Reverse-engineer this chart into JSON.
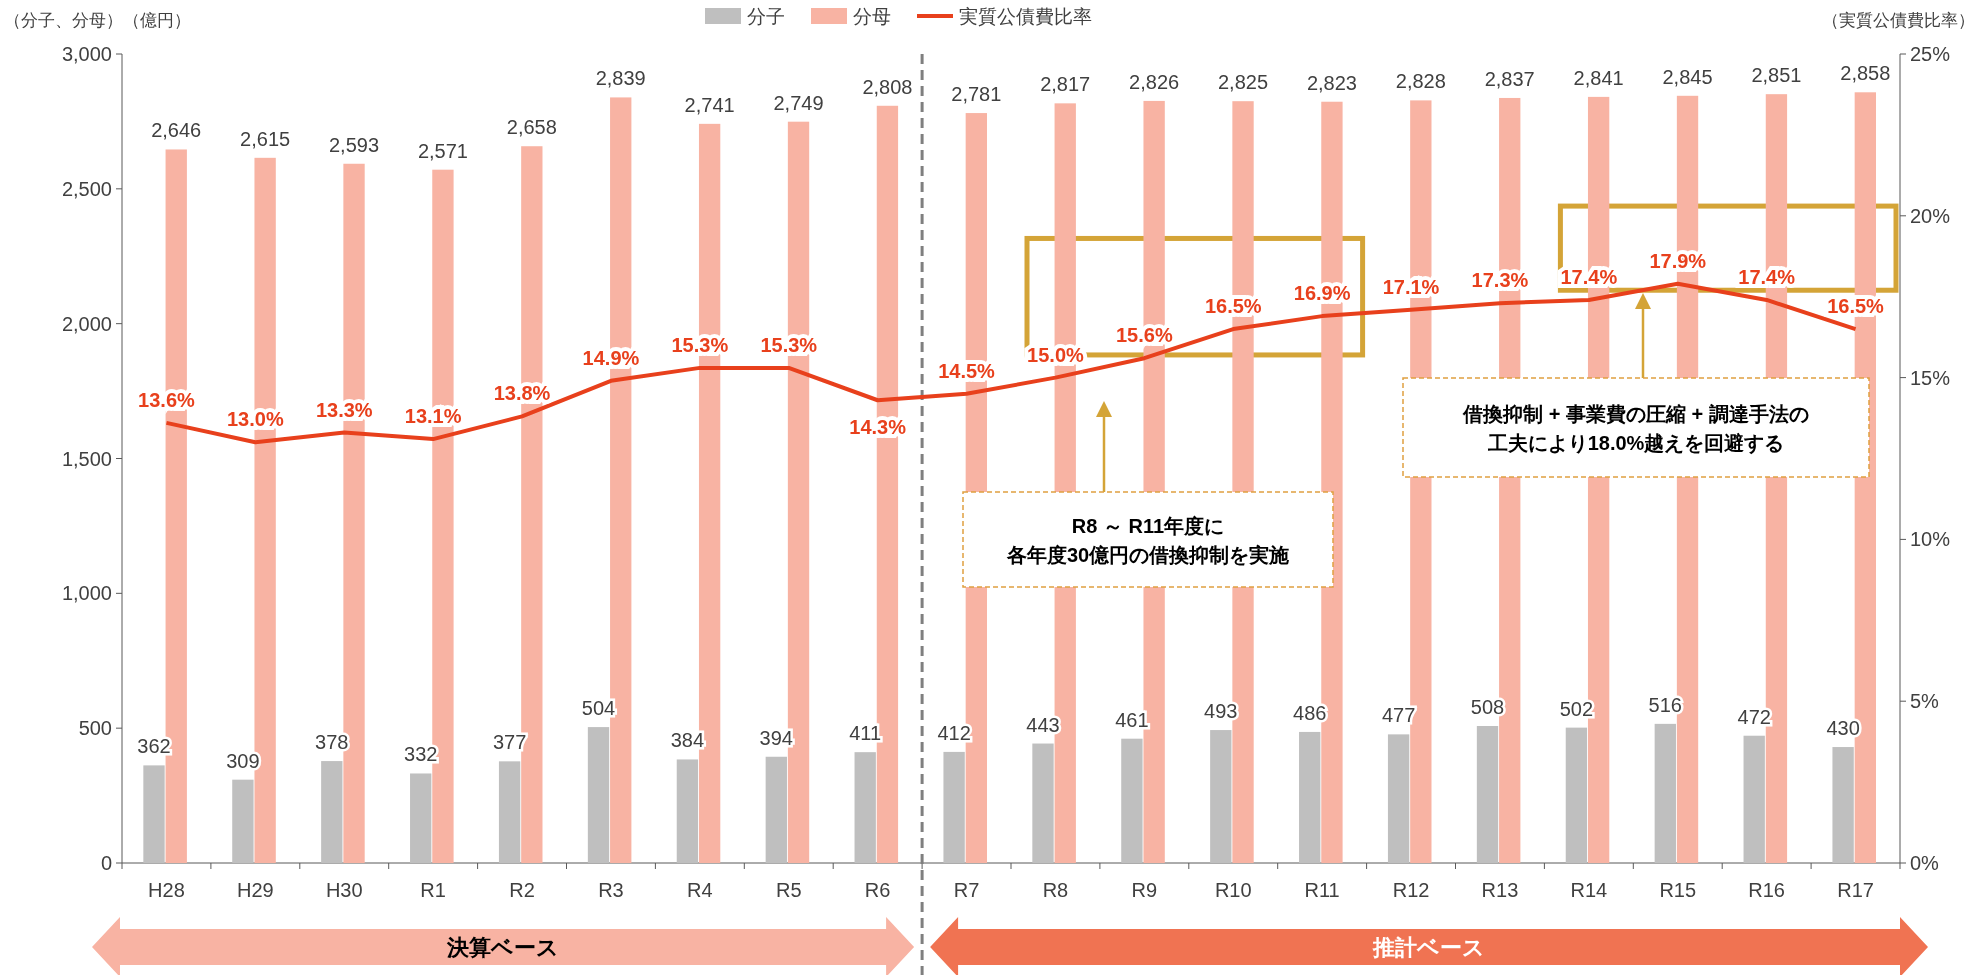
{
  "chart_data": {
    "type": "bar",
    "ylabel": "（分子、分母）（億円）",
    "y2label": "（実質公債費比率）",
    "categories": [
      "H28",
      "H29",
      "H30",
      "R1",
      "R2",
      "R3",
      "R4",
      "R5",
      "R6",
      "R7",
      "R8",
      "R9",
      "R10",
      "R11",
      "R12",
      "R13",
      "R14",
      "R15",
      "R16",
      "R17"
    ],
    "series": [
      {
        "name": "分子",
        "type": "bar",
        "color": "#bfbfbf",
        "values": [
          362,
          309,
          378,
          332,
          377,
          504,
          384,
          394,
          411,
          412,
          443,
          461,
          493,
          486,
          477,
          508,
          502,
          516,
          472,
          430
        ],
        "value_labels": [
          "362",
          "309",
          "378",
          "332",
          "377",
          "504",
          "384",
          "394",
          "411",
          "412",
          "443",
          "461",
          "493",
          "486",
          "477",
          "508",
          "502",
          "516",
          "472",
          "430"
        ]
      },
      {
        "name": "分母",
        "type": "bar",
        "color": "#f8b3a3",
        "values": [
          2646,
          2615,
          2593,
          2571,
          2658,
          2839,
          2741,
          2749,
          2808,
          2781,
          2817,
          2826,
          2825,
          2823,
          2828,
          2837,
          2841,
          2845,
          2851,
          2858
        ],
        "value_labels": [
          "2,646",
          "2,615",
          "2,593",
          "2,571",
          "2,658",
          "2,839",
          "2,741",
          "2,749",
          "2,808",
          "2,781",
          "2,817",
          "2,826",
          "2,825",
          "2,823",
          "2,828",
          "2,837",
          "2,841",
          "2,845",
          "2,851",
          "2,858"
        ]
      },
      {
        "name": "実質公債費比率",
        "type": "line",
        "axis": "y2",
        "color": "#e8401c",
        "values": [
          13.6,
          13.0,
          13.3,
          13.1,
          13.8,
          14.9,
          15.3,
          15.3,
          14.3,
          14.5,
          15.0,
          15.6,
          16.5,
          16.9,
          17.1,
          17.3,
          17.4,
          17.9,
          17.4,
          16.5
        ],
        "value_labels": [
          "13.6%",
          "13.0%",
          "13.3%",
          "13.1%",
          "13.8%",
          "14.9%",
          "15.3%",
          "15.3%",
          "14.3%",
          "14.5%",
          "15.0%",
          "15.6%",
          "16.5%",
          "16.9%",
          "17.1%",
          "17.3%",
          "17.4%",
          "17.9%",
          "17.4%",
          "16.5%"
        ]
      }
    ],
    "ylim": [
      0,
      3000
    ],
    "yticks": [
      0,
      500,
      {
        "value": 1000,
        "label": "1,000"
      },
      {
        "value": 1500,
        "label": "1,500"
      },
      {
        "value": 2000,
        "label": "2,000"
      },
      {
        "value": 2500,
        "label": "2,500"
      },
      {
        "value": 3000,
        "label": "3,000"
      }
    ],
    "y2lim": [
      0,
      25
    ],
    "y2ticks": [
      {
        "value": 0,
        "label": "0%"
      },
      {
        "value": 5,
        "label": "5%"
      },
      {
        "value": 10,
        "label": "10%"
      },
      {
        "value": 15,
        "label": "15%"
      },
      {
        "value": 20,
        "label": "20%"
      },
      {
        "value": 25,
        "label": "25%"
      }
    ],
    "legend": "top",
    "grid": false,
    "annotations": [
      "R8 ～ R11年度に各年度30億円の借換抑制を実施",
      "借換抑制 + 事業費の圧縮 + 調達手法の工夫により18.0%越えを回避する",
      "決算ベース",
      "推計ベース"
    ]
  }
}
